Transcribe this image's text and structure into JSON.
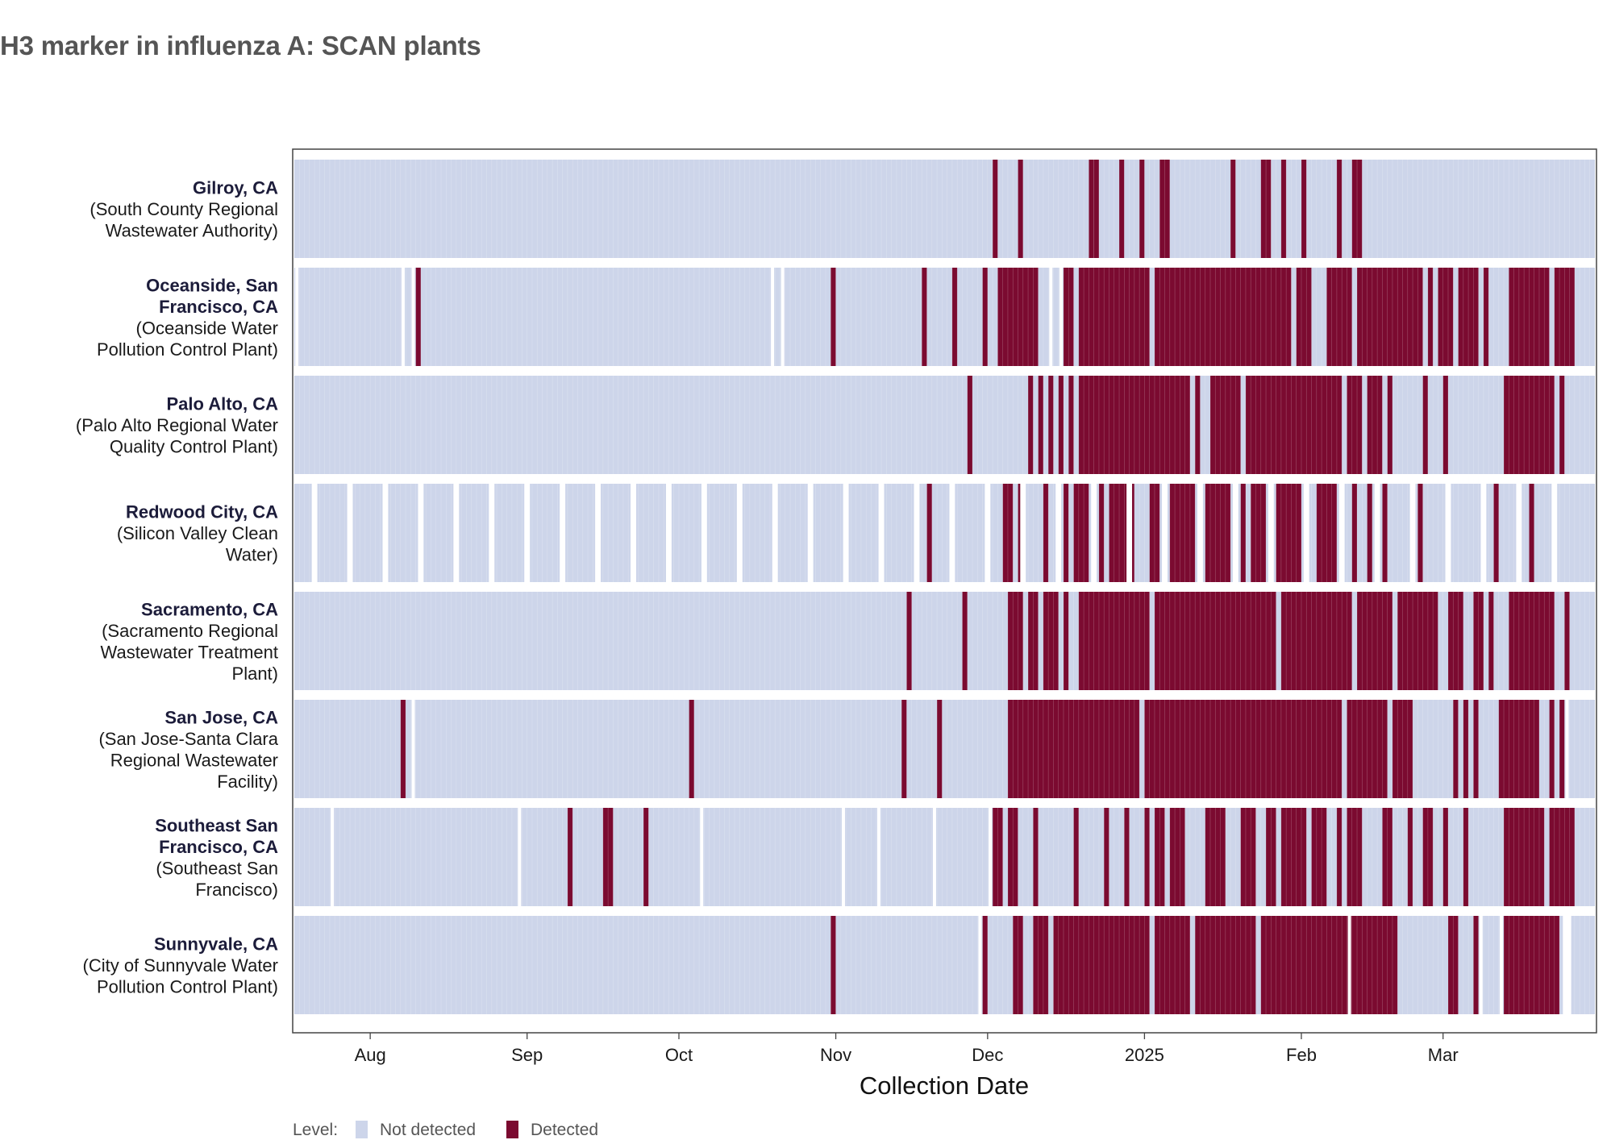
{
  "chart_data": {
    "type": "heatmap",
    "title": "H3 marker in influenza A: SCAN plants",
    "xlabel": "Collection Date",
    "ylabel": "",
    "x_range": [
      "2024-07-17",
      "2025-03-30"
    ],
    "x_ticks": [
      {
        "date": "2024-08-01",
        "label": "Aug"
      },
      {
        "date": "2024-09-01",
        "label": "Sep"
      },
      {
        "date": "2024-10-01",
        "label": "Oct"
      },
      {
        "date": "2024-11-01",
        "label": "Nov"
      },
      {
        "date": "2024-12-01",
        "label": "Dec"
      },
      {
        "date": "2025-01-01",
        "label": "2025"
      },
      {
        "date": "2025-02-01",
        "label": "Feb"
      },
      {
        "date": "2025-03-01",
        "label": "Mar"
      }
    ],
    "legend": {
      "title": "Level:",
      "position": "bottom-left",
      "entries": [
        {
          "name": "Not detected",
          "color": "#cdd5ea"
        },
        {
          "name": "Detected",
          "color": "#7b0a30"
        }
      ]
    },
    "series": [
      {
        "name": "Gilroy, CA",
        "facility": "(South County Regional Wastewater Authority)",
        "label_lines": [
          {
            "text": "Gilroy, CA",
            "bold": true
          },
          {
            "text": "(South County Regional",
            "bold": false
          },
          {
            "text": "Wastewater Authority)",
            "bold": false
          }
        ],
        "gaps": [],
        "detected": [
          "2024-12-02",
          "2024-12-07",
          "2024-12-21",
          "2024-12-22",
          "2024-12-27",
          "2024-12-31",
          "2025-01-04",
          "2025-01-05",
          "2025-01-18",
          "2025-01-24",
          "2025-01-25",
          "2025-01-28",
          "2025-02-01",
          "2025-02-08",
          "2025-02-11",
          "2025-02-12"
        ]
      },
      {
        "name": "Oceanside, San Francisco, CA",
        "facility": "(Oceanside Water Pollution Control Plant)",
        "label_lines": [
          {
            "text": "Oceanside, San",
            "bold": true
          },
          {
            "text": "Francisco, CA",
            "bold": true
          },
          {
            "text": "(Oceanside Water",
            "bold": false
          },
          {
            "text": "Pollution Control Plant)",
            "bold": false
          }
        ],
        "gaps": [
          [
            "2024-07-17",
            "2024-07-17"
          ],
          [
            "2024-08-07",
            "2024-08-07"
          ],
          [
            "2024-08-09",
            "2024-08-09"
          ],
          [
            "2024-10-19",
            "2024-10-19"
          ],
          [
            "2024-10-21",
            "2024-10-21"
          ],
          [
            "2024-12-13",
            "2024-12-13"
          ],
          [
            "2024-12-15",
            "2024-12-15"
          ]
        ],
        "detected": [
          "2024-08-10",
          "2024-10-31",
          "2024-11-18",
          "2024-11-24",
          "2024-11-30",
          [
            "2024-12-03",
            "2024-12-10"
          ],
          [
            "2024-12-16",
            "2024-12-17"
          ],
          [
            "2024-12-19",
            "2025-01-01"
          ],
          [
            "2025-01-03",
            "2025-01-29"
          ],
          [
            "2025-01-31",
            "2025-02-02"
          ],
          [
            "2025-02-06",
            "2025-02-10"
          ],
          [
            "2025-02-12",
            "2025-02-24"
          ],
          "2025-02-26",
          [
            "2025-02-28",
            "2025-03-02"
          ],
          [
            "2025-03-04",
            "2025-03-07"
          ],
          "2025-03-09",
          [
            "2025-03-14",
            "2025-03-21"
          ],
          [
            "2025-03-23",
            "2025-03-26"
          ]
        ]
      },
      {
        "name": "Palo Alto, CA",
        "facility": "(Palo Alto Regional Water Quality Control Plant)",
        "label_lines": [
          {
            "text": "Palo Alto, CA",
            "bold": true
          },
          {
            "text": "(Palo Alto Regional Water",
            "bold": false
          },
          {
            "text": "Quality Control Plant)",
            "bold": false
          }
        ],
        "gaps": [],
        "detected": [
          "2024-11-27",
          "2024-12-09",
          "2024-12-11",
          "2024-12-13",
          "2024-12-15",
          "2024-12-17",
          [
            "2024-12-19",
            "2025-01-09"
          ],
          "2025-01-11",
          [
            "2025-01-14",
            "2025-01-19"
          ],
          [
            "2025-01-21",
            "2025-02-08"
          ],
          [
            "2025-02-10",
            "2025-02-12"
          ],
          [
            "2025-02-14",
            "2025-02-16"
          ],
          "2025-02-18",
          "2025-02-25",
          "2025-03-01",
          [
            "2025-03-13",
            "2025-03-22"
          ],
          "2025-03-24"
        ]
      },
      {
        "name": "Redwood City, CA",
        "facility": "(Silicon Valley Clean Water)",
        "label_lines": [
          {
            "text": "Redwood City, CA",
            "bold": true
          },
          {
            "text": "(Silicon Valley Clean",
            "bold": false
          },
          {
            "text": "Water)",
            "bold": false
          }
        ],
        "gaps": [
          [
            "2024-07-20",
            "2024-07-21"
          ],
          [
            "2024-07-27",
            "2024-07-28"
          ],
          [
            "2024-08-03",
            "2024-08-04"
          ],
          [
            "2024-08-10",
            "2024-08-11"
          ],
          [
            "2024-08-17",
            "2024-08-18"
          ],
          [
            "2024-08-24",
            "2024-08-25"
          ],
          [
            "2024-08-31",
            "2024-09-01"
          ],
          [
            "2024-09-07",
            "2024-09-08"
          ],
          [
            "2024-09-14",
            "2024-09-15"
          ],
          [
            "2024-09-21",
            "2024-09-22"
          ],
          [
            "2024-09-28",
            "2024-09-29"
          ],
          [
            "2024-10-05",
            "2024-10-06"
          ],
          [
            "2024-10-12",
            "2024-10-13"
          ],
          [
            "2024-10-19",
            "2024-10-20"
          ],
          [
            "2024-10-26",
            "2024-10-27"
          ],
          [
            "2024-11-02",
            "2024-11-03"
          ],
          [
            "2024-11-09",
            "2024-11-10"
          ],
          [
            "2024-11-16",
            "2024-11-17"
          ],
          [
            "2024-11-23",
            "2024-11-24"
          ],
          [
            "2024-11-30",
            "2024-12-01"
          ],
          [
            "2024-12-07",
            "2024-12-08"
          ],
          [
            "2024-12-14",
            "2024-12-15"
          ],
          [
            "2024-12-21",
            "2024-12-22"
          ],
          [
            "2024-12-28",
            "2024-12-29"
          ],
          [
            "2025-01-04",
            "2025-01-05"
          ],
          [
            "2025-01-11",
            "2025-01-12"
          ],
          [
            "2025-01-18",
            "2025-01-19"
          ],
          [
            "2025-01-25",
            "2025-01-26"
          ],
          [
            "2025-02-01",
            "2025-02-02"
          ],
          [
            "2025-02-08",
            "2025-02-09"
          ],
          [
            "2025-02-15",
            "2025-02-16"
          ],
          [
            "2025-02-22",
            "2025-02-23"
          ],
          [
            "2025-03-01",
            "2025-03-02"
          ],
          [
            "2025-03-08",
            "2025-03-09"
          ],
          [
            "2025-03-15",
            "2025-03-16"
          ],
          [
            "2025-03-22",
            "2025-03-23"
          ]
        ],
        "detected": [
          "2024-11-19",
          [
            "2024-12-04",
            "2024-12-05"
          ],
          "2024-12-07",
          "2024-12-12",
          "2024-12-16",
          [
            "2024-12-18",
            "2024-12-20"
          ],
          "2024-12-23",
          [
            "2024-12-25",
            "2024-12-29"
          ],
          [
            "2025-01-02",
            "2025-01-03"
          ],
          [
            "2025-01-06",
            "2025-01-10"
          ],
          [
            "2025-01-13",
            "2025-01-17"
          ],
          "2025-01-20",
          [
            "2025-01-22",
            "2025-01-24"
          ],
          [
            "2025-01-27",
            "2025-01-31"
          ],
          [
            "2025-02-04",
            "2025-02-07"
          ],
          "2025-02-11",
          "2025-02-14",
          "2025-02-17",
          "2025-02-24",
          "2025-03-11",
          "2025-03-18"
        ]
      },
      {
        "name": "Sacramento, CA",
        "facility": "(Sacramento Regional Wastewater Treatment Plant)",
        "label_lines": [
          {
            "text": "Sacramento, CA",
            "bold": true
          },
          {
            "text": "(Sacramento Regional",
            "bold": false
          },
          {
            "text": "Wastewater Treatment",
            "bold": false
          },
          {
            "text": "Plant)",
            "bold": false
          }
        ],
        "gaps": [],
        "detected": [
          "2024-11-15",
          "2024-11-26",
          [
            "2024-12-05",
            "2024-12-07"
          ],
          [
            "2024-12-09",
            "2024-12-10"
          ],
          [
            "2024-12-12",
            "2024-12-14"
          ],
          "2024-12-16",
          [
            "2024-12-19",
            "2025-01-01"
          ],
          [
            "2025-01-03",
            "2025-01-26"
          ],
          [
            "2025-01-28",
            "2025-02-10"
          ],
          [
            "2025-02-12",
            "2025-02-18"
          ],
          [
            "2025-02-20",
            "2025-02-27"
          ],
          [
            "2025-03-02",
            "2025-03-04"
          ],
          [
            "2025-03-07",
            "2025-03-08"
          ],
          "2025-03-10",
          [
            "2025-03-14",
            "2025-03-22"
          ],
          "2025-03-25"
        ]
      },
      {
        "name": "San Jose, CA",
        "facility": "(San Jose-Santa Clara Regional Wastewater Facility)",
        "label_lines": [
          {
            "text": "San Jose, CA",
            "bold": true
          },
          {
            "text": "(San Jose-Santa Clara",
            "bold": false
          },
          {
            "text": "Regional Wastewater",
            "bold": false
          },
          {
            "text": "Facility)",
            "bold": false
          }
        ],
        "gaps": [
          [
            "2024-08-09",
            "2024-08-09"
          ],
          "2025-03-25"
        ],
        "detected": [
          "2024-08-07",
          "2024-10-03",
          "2024-11-14",
          "2024-11-21",
          [
            "2024-12-05",
            "2024-12-30"
          ],
          [
            "2025-01-01",
            "2025-02-08"
          ],
          [
            "2025-02-10",
            "2025-02-17"
          ],
          [
            "2025-02-19",
            "2025-02-22"
          ],
          "2025-03-03",
          "2025-03-05",
          "2025-03-07",
          [
            "2025-03-12",
            "2025-03-19"
          ],
          "2025-03-22",
          "2025-03-24"
        ]
      },
      {
        "name": "Southeast San Francisco, CA",
        "facility": "(Southeast San Francisco)",
        "label_lines": [
          {
            "text": "Southeast San",
            "bold": true
          },
          {
            "text": "Francisco, CA",
            "bold": true
          },
          {
            "text": "(Southeast San",
            "bold": false
          },
          {
            "text": "Francisco)",
            "bold": false
          }
        ],
        "gaps": [
          [
            "2024-07-24",
            "2024-07-24"
          ],
          [
            "2024-08-30",
            "2024-08-30"
          ],
          [
            "2024-10-05",
            "2024-10-05"
          ],
          [
            "2024-11-02",
            "2024-11-02"
          ],
          [
            "2024-11-09",
            "2024-11-09"
          ],
          [
            "2024-11-20",
            "2024-11-20"
          ],
          [
            "2024-12-01",
            "2024-12-01"
          ]
        ],
        "detected": [
          "2024-09-09",
          [
            "2024-09-16",
            "2024-09-17"
          ],
          "2024-09-24",
          [
            "2024-12-02",
            "2024-12-03"
          ],
          [
            "2024-12-05",
            "2024-12-06"
          ],
          "2024-12-10",
          "2024-12-18",
          "2024-12-24",
          "2024-12-28",
          "2025-01-01",
          [
            "2025-01-03",
            "2025-01-04"
          ],
          [
            "2025-01-06",
            "2025-01-08"
          ],
          [
            "2025-01-13",
            "2025-01-16"
          ],
          [
            "2025-01-20",
            "2025-01-22"
          ],
          [
            "2025-01-25",
            "2025-01-26"
          ],
          [
            "2025-01-28",
            "2025-02-01"
          ],
          [
            "2025-02-03",
            "2025-02-05"
          ],
          "2025-02-08",
          [
            "2025-02-10",
            "2025-02-12"
          ],
          [
            "2025-02-17",
            "2025-02-18"
          ],
          "2025-02-22",
          [
            "2025-02-25",
            "2025-02-26"
          ],
          "2025-03-01",
          "2025-03-05",
          [
            "2025-03-13",
            "2025-03-20"
          ],
          [
            "2025-03-22",
            "2025-03-26"
          ]
        ]
      },
      {
        "name": "Sunnyvale, CA",
        "facility": "(City of Sunnyvale Water Pollution Control Plant)",
        "label_lines": [
          {
            "text": "Sunnyvale, CA",
            "bold": true
          },
          {
            "text": "(City of Sunnyvale Water",
            "bold": false
          },
          {
            "text": "Pollution Control Plant)",
            "bold": false
          }
        ],
        "gaps": [
          [
            "2024-11-29",
            "2024-11-29"
          ],
          [
            "2025-02-10",
            "2025-02-10"
          ],
          [
            "2025-03-08",
            "2025-03-08"
          ],
          [
            "2025-03-12",
            "2025-03-12"
          ],
          [
            "2025-03-24",
            "2025-03-26"
          ]
        ],
        "detected": [
          "2024-10-31",
          "2024-11-30",
          [
            "2024-12-06",
            "2024-12-07"
          ],
          [
            "2024-12-10",
            "2024-12-12"
          ],
          [
            "2024-12-14",
            "2025-01-01"
          ],
          [
            "2025-01-03",
            "2025-01-09"
          ],
          [
            "2025-01-11",
            "2025-01-22"
          ],
          [
            "2025-01-24",
            "2025-02-19"
          ],
          [
            "2025-03-02",
            "2025-03-03"
          ],
          "2025-03-07",
          [
            "2025-03-13",
            "2025-03-23"
          ]
        ]
      }
    ]
  }
}
